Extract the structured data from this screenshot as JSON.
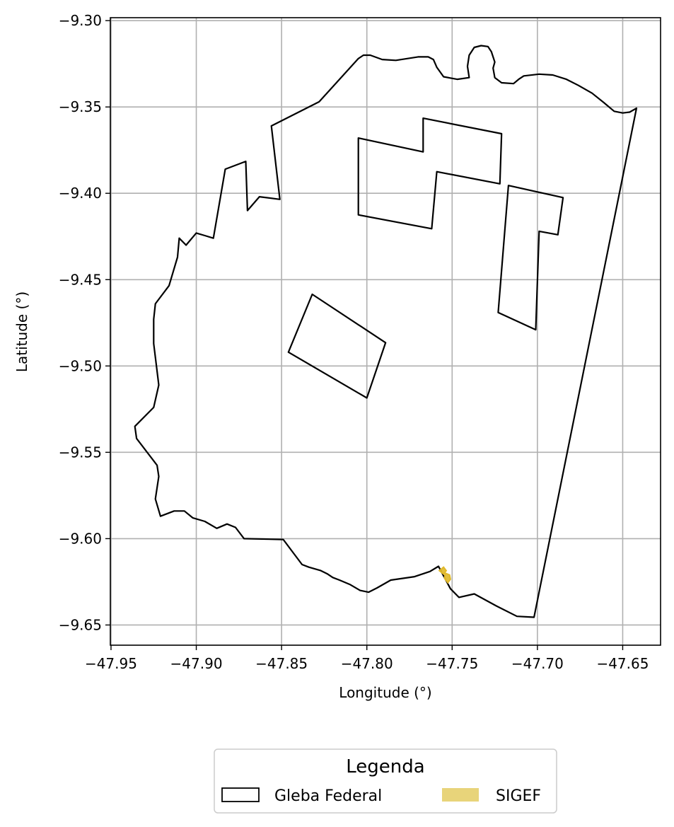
{
  "chart_data": {
    "type": "map",
    "xlabel": "Longitude (°)",
    "ylabel": "Latitude (°)",
    "xlim": [
      -47.9504,
      -47.6278
    ],
    "ylim": [
      -9.6617,
      -9.2983
    ],
    "x_ticks": [
      -47.95,
      -47.9,
      -47.85,
      -47.8,
      -47.75,
      -47.7,
      -47.65
    ],
    "x_tick_labels": [
      "−47.95",
      "−47.90",
      "−47.85",
      "−47.80",
      "−47.75",
      "−47.70",
      "−47.65"
    ],
    "y_ticks": [
      -9.3,
      -9.35,
      -9.4,
      -9.45,
      -9.5,
      -9.55,
      -9.6,
      -9.65
    ],
    "y_tick_labels": [
      "−9.30",
      "−9.35",
      "−9.40",
      "−9.45",
      "−9.50",
      "−9.55",
      "−9.60",
      "−9.65"
    ],
    "grid": true,
    "legend": {
      "title": "Legenda",
      "placement": "bottom-center",
      "entries": [
        {
          "label": "Gleba Federal",
          "style": "outline",
          "color": "#000000"
        },
        {
          "label": "SIGEF",
          "style": "fill",
          "color": "#e8d47a"
        }
      ]
    },
    "layers": [
      {
        "name": "Gleba Federal",
        "color": "#000000",
        "outer": [
          [
            -47.6419,
            -9.3507
          ],
          [
            -47.6459,
            -9.353
          ],
          [
            -47.65,
            -9.3535
          ],
          [
            -47.655,
            -9.3525
          ],
          [
            -47.661,
            -9.3475
          ],
          [
            -47.668,
            -9.342
          ],
          [
            -47.676,
            -9.3375
          ],
          [
            -47.683,
            -9.334
          ],
          [
            -47.691,
            -9.3315
          ],
          [
            -47.699,
            -9.331
          ],
          [
            -47.708,
            -9.332
          ],
          [
            -47.711,
            -9.334
          ],
          [
            -47.714,
            -9.3365
          ],
          [
            -47.721,
            -9.336
          ],
          [
            -47.725,
            -9.333
          ],
          [
            -47.726,
            -9.3275
          ],
          [
            -47.725,
            -9.324
          ],
          [
            -47.727,
            -9.318
          ],
          [
            -47.729,
            -9.315
          ],
          [
            -47.733,
            -9.3145
          ],
          [
            -47.737,
            -9.3155
          ],
          [
            -47.74,
            -9.32
          ],
          [
            -47.741,
            -9.3265
          ],
          [
            -47.74,
            -9.333
          ],
          [
            -47.747,
            -9.334
          ],
          [
            -47.755,
            -9.3325
          ],
          [
            -47.759,
            -9.327
          ],
          [
            -47.761,
            -9.3225
          ],
          [
            -47.764,
            -9.321
          ],
          [
            -47.77,
            -9.321
          ],
          [
            -47.783,
            -9.323
          ],
          [
            -47.791,
            -9.3225
          ],
          [
            -47.798,
            -9.32
          ],
          [
            -47.802,
            -9.32
          ],
          [
            -47.805,
            -9.322
          ],
          [
            -47.828,
            -9.347
          ],
          [
            -47.856,
            -9.361
          ],
          [
            -47.851,
            -9.4035
          ],
          [
            -47.863,
            -9.402
          ],
          [
            -47.87,
            -9.41
          ],
          [
            -47.871,
            -9.3815
          ],
          [
            -47.883,
            -9.386
          ],
          [
            -47.89,
            -9.426
          ],
          [
            -47.895,
            -9.4245
          ],
          [
            -47.9,
            -9.423
          ],
          [
            -47.906,
            -9.43
          ],
          [
            -47.91,
            -9.426
          ],
          [
            -47.911,
            -9.437
          ],
          [
            -47.916,
            -9.4535
          ],
          [
            -47.924,
            -9.464
          ],
          [
            -47.925,
            -9.473
          ],
          [
            -47.925,
            -9.487
          ],
          [
            -47.922,
            -9.511
          ],
          [
            -47.925,
            -9.524
          ],
          [
            -47.936,
            -9.535
          ],
          [
            -47.935,
            -9.542
          ],
          [
            -47.923,
            -9.5575
          ],
          [
            -47.922,
            -9.564
          ],
          [
            -47.924,
            -9.577
          ],
          [
            -47.921,
            -9.587
          ],
          [
            -47.913,
            -9.584
          ],
          [
            -47.907,
            -9.584
          ],
          [
            -47.902,
            -9.588
          ],
          [
            -47.895,
            -9.59
          ],
          [
            -47.888,
            -9.594
          ],
          [
            -47.882,
            -9.5915
          ],
          [
            -47.877,
            -9.5935
          ],
          [
            -47.872,
            -9.6
          ],
          [
            -47.849,
            -9.6005
          ],
          [
            -47.838,
            -9.615
          ],
          [
            -47.834,
            -9.6165
          ],
          [
            -47.827,
            -9.6185
          ],
          [
            -47.823,
            -9.6205
          ],
          [
            -47.82,
            -9.6225
          ],
          [
            -47.816,
            -9.624
          ],
          [
            -47.81,
            -9.6265
          ],
          [
            -47.804,
            -9.63
          ],
          [
            -47.799,
            -9.631
          ],
          [
            -47.794,
            -9.6285
          ],
          [
            -47.786,
            -9.624
          ],
          [
            -47.772,
            -9.622
          ],
          [
            -47.763,
            -9.619
          ],
          [
            -47.758,
            -9.616
          ],
          [
            -47.751,
            -9.629
          ],
          [
            -47.746,
            -9.634
          ],
          [
            -47.737,
            -9.632
          ],
          [
            -47.724,
            -9.639
          ],
          [
            -47.712,
            -9.645
          ],
          [
            -47.702,
            -9.6455
          ],
          [
            -47.6419,
            -9.3507
          ]
        ],
        "holes": [
          [
            [
              -47.805,
              -9.368
            ],
            [
              -47.767,
              -9.376
            ],
            [
              -47.767,
              -9.3565
            ],
            [
              -47.721,
              -9.3655
            ],
            [
              -47.722,
              -9.3945
            ],
            [
              -47.759,
              -9.3875
            ],
            [
              -47.762,
              -9.4205
            ],
            [
              -47.805,
              -9.4125
            ],
            [
              -47.805,
              -9.368
            ]
          ],
          [
            [
              -47.717,
              -9.3955
            ],
            [
              -47.685,
              -9.4025
            ],
            [
              -47.688,
              -9.424
            ],
            [
              -47.699,
              -9.422
            ],
            [
              -47.701,
              -9.479
            ],
            [
              -47.723,
              -9.469
            ],
            [
              -47.717,
              -9.3955
            ]
          ],
          [
            [
              -47.832,
              -9.4585
            ],
            [
              -47.846,
              -9.492
            ],
            [
              -47.8,
              -9.5185
            ],
            [
              -47.789,
              -9.4865
            ],
            [
              -47.832,
              -9.4585
            ]
          ]
        ]
      },
      {
        "name": "SIGEF",
        "color": "#e0b82a",
        "parcels": [
          [
            [
              -47.7575,
              -9.6185
            ],
            [
              -47.755,
              -9.6165
            ],
            [
              -47.7535,
              -9.6185
            ],
            [
              -47.755,
              -9.6205
            ],
            [
              -47.7575,
              -9.6185
            ]
          ],
          [
            [
              -47.754,
              -9.62
            ],
            [
              -47.7515,
              -9.621
            ],
            [
              -47.751,
              -9.6235
            ],
            [
              -47.7525,
              -9.6255
            ],
            [
              -47.7545,
              -9.623
            ],
            [
              -47.754,
              -9.62
            ]
          ]
        ]
      }
    ]
  }
}
